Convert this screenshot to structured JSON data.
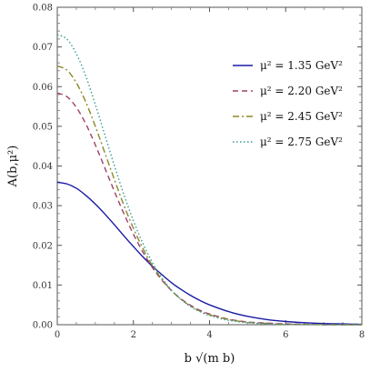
{
  "chart_data": {
    "type": "line",
    "title": "",
    "xlabel": "b √(m b)",
    "ylabel": "A(b,μ²)",
    "xlim": [
      0,
      8
    ],
    "ylim": [
      0,
      0.08
    ],
    "xticks": [
      0,
      2,
      4,
      6,
      8
    ],
    "yticks": [
      0.0,
      0.01,
      0.02,
      0.03,
      0.04,
      0.05,
      0.06,
      0.07,
      0.08
    ],
    "ytick_labels": [
      "0.00",
      "0.01",
      "0.02",
      "0.03",
      "0.04",
      "0.05",
      "0.06",
      "0.07",
      "0.08"
    ],
    "grid": false,
    "legend_position": "top-right",
    "x": [
      0,
      0.25,
      0.5,
      0.75,
      1.0,
      1.25,
      1.5,
      1.75,
      2.0,
      2.25,
      2.5,
      2.75,
      3.0,
      3.25,
      3.5,
      3.75,
      4.0,
      4.5,
      5.0,
      5.5,
      6.0,
      6.5,
      7.0,
      7.5,
      8.0
    ],
    "series": [
      {
        "name": "μ² = 1.35 GeV²",
        "color": "#1a1aa6",
        "dash": "solid",
        "values": [
          0.0359,
          0.0355,
          0.0344,
          0.0326,
          0.0304,
          0.0279,
          0.0252,
          0.0224,
          0.0197,
          0.0171,
          0.0147,
          0.0126,
          0.0106,
          0.0089,
          0.0074,
          0.0061,
          0.005,
          0.0033,
          0.0021,
          0.0013,
          0.0008,
          0.0005,
          0.0003,
          0.0002,
          0.0001
        ]
      },
      {
        "name": "μ² = 2.20 GeV²",
        "color": "#a0406a",
        "dash": "dashed",
        "values": [
          0.0584,
          0.0575,
          0.0548,
          0.0506,
          0.0453,
          0.0395,
          0.0336,
          0.028,
          0.0228,
          0.0183,
          0.0144,
          0.0112,
          0.0086,
          0.0065,
          0.0049,
          0.0036,
          0.0027,
          0.0014,
          0.0007,
          0.0004,
          0.0002,
          0.0001,
          0.0,
          0.0,
          0.0
        ]
      },
      {
        "name": "μ² = 2.45 GeV²",
        "color": "#8a8a2a",
        "dash": "dashdot",
        "values": [
          0.0652,
          0.0642,
          0.061,
          0.0561,
          0.05,
          0.0433,
          0.0366,
          0.0301,
          0.0243,
          0.0192,
          0.0149,
          0.0114,
          0.0086,
          0.0064,
          0.0047,
          0.0034,
          0.0025,
          0.0013,
          0.0006,
          0.0003,
          0.0001,
          0.0001,
          0.0,
          0.0,
          0.0
        ]
      },
      {
        "name": "μ² = 2.75 GeV²",
        "color": "#3a9a9a",
        "dash": "dotted",
        "values": [
          0.0731,
          0.072,
          0.0683,
          0.0626,
          0.0555,
          0.0478,
          0.0401,
          0.0328,
          0.0262,
          0.0205,
          0.0157,
          0.0118,
          0.0087,
          0.0064,
          0.0046,
          0.0033,
          0.0023,
          0.0011,
          0.0005,
          0.0002,
          0.0001,
          0.0,
          0.0,
          0.0,
          0.0
        ]
      }
    ]
  }
}
